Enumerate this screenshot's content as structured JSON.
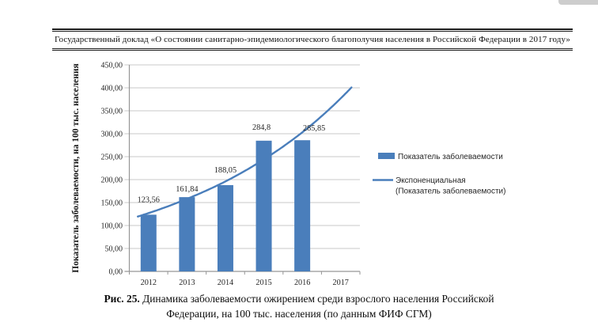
{
  "header": {
    "text": "Государственный доклад «О состоянии санитарно-эпидемиологического благополучия населения в Российской Федерации в 2017 году»"
  },
  "caption": {
    "prefix": "Рис. 25.",
    "line1": "Динамика заболеваемости ожирением среди взрослого населения Российской",
    "line2": "Федерации, на 100 тыс. населения (по данным ФИФ СГМ)"
  },
  "chart_data": {
    "type": "bar",
    "title": "",
    "categories": [
      "2012",
      "2013",
      "2014",
      "2015",
      "2016",
      "2017"
    ],
    "series": [
      {
        "name": "Показатель заболеваемости",
        "type": "bar",
        "values": [
          123.56,
          161.84,
          188.05,
          284.8,
          285.85,
          null
        ],
        "data_labels": [
          "123,56",
          "161,84",
          "188,05",
          "284,8",
          "285,85"
        ]
      },
      {
        "name": "Экспоненциальная (Показатель заболеваемости)",
        "type": "line",
        "trend": "exponential",
        "values": [
          127,
          158,
          196,
          244,
          303,
          377
        ]
      }
    ],
    "ylabel": "Показатель заболеваемости, на 100 тыс. населения",
    "xlabel": "",
    "ylim": [
      0,
      450
    ],
    "ytick_step": 50,
    "ytick_labels": [
      "0,00",
      "50,00",
      "100,00",
      "150,00",
      "200,00",
      "250,00",
      "300,00",
      "350,00",
      "400,00",
      "450,00"
    ],
    "grid": true,
    "legend": {
      "position": "right",
      "entries": [
        {
          "swatch": "bar",
          "lines": [
            "Показатель заболеваемости"
          ]
        },
        {
          "swatch": "line",
          "lines": [
            "Экспоненциальная",
            "(Показатель заболеваемости)"
          ]
        }
      ]
    },
    "label_offsets_x": [
      0,
      0,
      0,
      -3,
      15
    ],
    "label_offsets_y": [
      -16,
      -7,
      -16,
      -14,
      -12
    ],
    "colors": {
      "bar": "#4a7ebb",
      "line": "#4a7ebb",
      "grid": "#c9c9c9",
      "axis": "#969696",
      "text": "#262626"
    }
  }
}
